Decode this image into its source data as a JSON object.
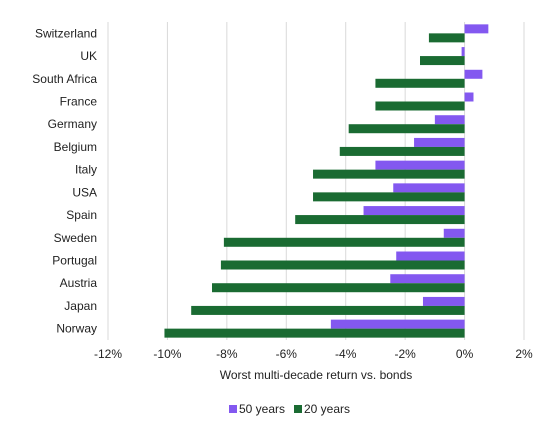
{
  "chart_data": {
    "type": "bar",
    "orientation": "horizontal",
    "categories": [
      "Switzerland",
      "UK",
      "South Africa",
      "France",
      "Germany",
      "Belgium",
      "Italy",
      "USA",
      "Spain",
      "Sweden",
      "Portugal",
      "Austria",
      "Japan",
      "Norway"
    ],
    "series": [
      {
        "name": "50 years",
        "color": "#8358F0",
        "values": [
          0.8,
          -0.1,
          0.6,
          0.3,
          -1.0,
          -1.7,
          -3.0,
          -2.4,
          -3.4,
          -0.7,
          -2.3,
          -2.5,
          -1.4,
          -4.5
        ]
      },
      {
        "name": "20 years",
        "color": "#1A6B32",
        "values": [
          -1.2,
          -1.5,
          -3.0,
          -3.0,
          -3.9,
          -4.2,
          -5.1,
          -5.1,
          -5.7,
          -8.1,
          -8.2,
          -8.5,
          -9.2,
          -10.1
        ]
      }
    ],
    "xlabel": "Worst multi-decade return vs. bonds",
    "xlim": [
      -12,
      2
    ],
    "xticks": [
      -12,
      -10,
      -8,
      -6,
      -4,
      -2,
      0,
      2
    ],
    "xtick_labels": [
      "-12%",
      "-10%",
      "-8%",
      "-6%",
      "-4%",
      "-2%",
      "0%",
      "2%"
    ],
    "grid": "vertical",
    "legend_position": "bottom"
  }
}
